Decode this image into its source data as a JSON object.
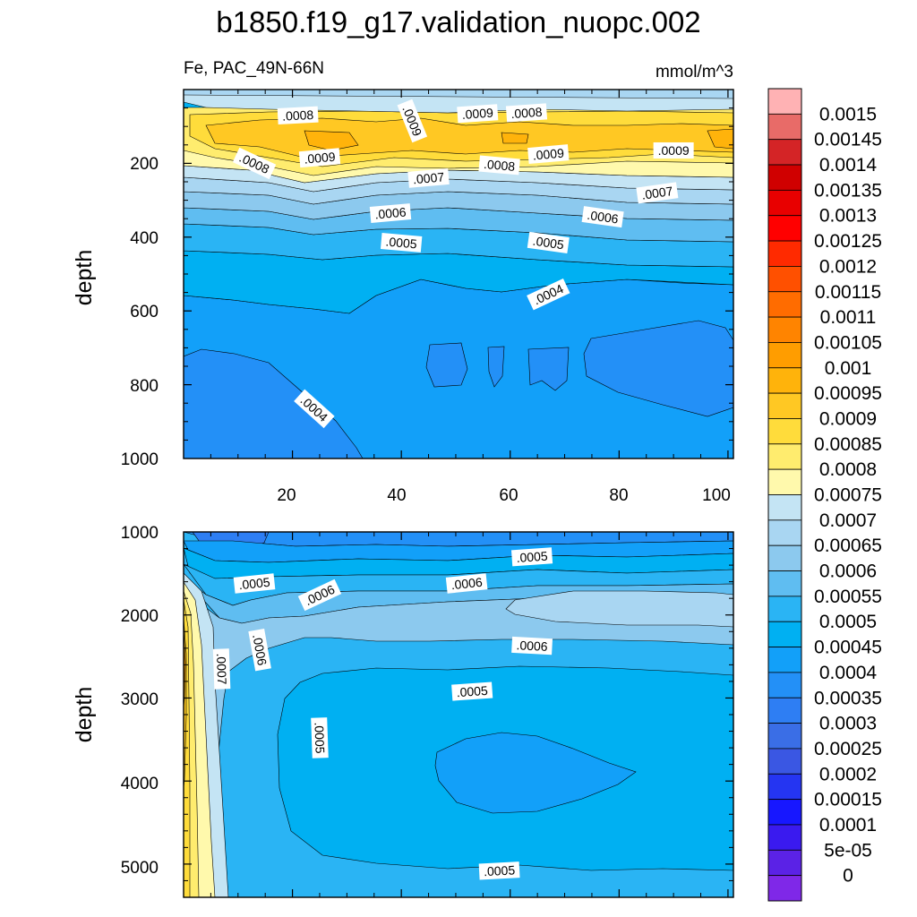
{
  "figure": {
    "title": "b1850.f19_g17.validation_nuopc.002",
    "variable_label": "Fe, PAC_49N-66N",
    "units": "mmol/m^3"
  },
  "chart_data": [
    {
      "type": "heatmap",
      "panel": "upper",
      "ylabel": "depth",
      "xlabel": "",
      "xlim": [
        0,
        101
      ],
      "ylim": [
        1000,
        0
      ],
      "x_ticks": [
        "20",
        "40",
        "60",
        "80",
        "100"
      ],
      "y_ticks": [
        "200",
        "400",
        "600",
        "800",
        "1000"
      ],
      "contour_labels": [
        {
          "text": ".0008",
          "x": 21,
          "y": 70
        },
        {
          "text": ".0009",
          "x": 42,
          "y": 85
        },
        {
          "text": ".0009",
          "x": 54,
          "y": 65
        },
        {
          "text": ".0008",
          "x": 63,
          "y": 63
        },
        {
          "text": ".0008",
          "x": 13,
          "y": 200
        },
        {
          "text": ".0009",
          "x": 25,
          "y": 185
        },
        {
          "text": ".0009",
          "x": 67,
          "y": 175
        },
        {
          "text": ".0008",
          "x": 58,
          "y": 205
        },
        {
          "text": ".0009",
          "x": 90,
          "y": 165
        },
        {
          "text": ".0007",
          "x": 45,
          "y": 240
        },
        {
          "text": ".0007",
          "x": 87,
          "y": 280
        },
        {
          "text": ".0006",
          "x": 38,
          "y": 335
        },
        {
          "text": ".0006",
          "x": 77,
          "y": 345
        },
        {
          "text": ".0005",
          "x": 40,
          "y": 415
        },
        {
          "text": ".0005",
          "x": 67,
          "y": 415
        },
        {
          "text": ".0004",
          "x": 67,
          "y": 555
        },
        {
          "text": ".0004",
          "x": 24,
          "y": 865
        }
      ]
    },
    {
      "type": "heatmap",
      "panel": "lower",
      "ylabel": "depth",
      "xlabel": "",
      "xlim": [
        0,
        101
      ],
      "ylim": [
        5400,
        1000
      ],
      "y_ticks": [
        "1000",
        "2000",
        "3000",
        "4000",
        "5000"
      ],
      "contour_labels": [
        {
          "text": ".0005",
          "x": 64,
          "y": 1300
        },
        {
          "text": ".0005",
          "x": 13,
          "y": 1620
        },
        {
          "text": ".0006",
          "x": 25,
          "y": 1760
        },
        {
          "text": ".0006",
          "x": 52,
          "y": 1620
        },
        {
          "text": ".0007",
          "x": 7,
          "y": 2650
        },
        {
          "text": ".0006",
          "x": 14,
          "y": 2420
        },
        {
          "text": ".0006",
          "x": 64,
          "y": 2370
        },
        {
          "text": ".0005",
          "x": 53,
          "y": 2920
        },
        {
          "text": ".0005",
          "x": 25,
          "y": 3480
        },
        {
          "text": ".0005",
          "x": 58,
          "y": 5080
        }
      ]
    }
  ],
  "colorbar": {
    "labels": [
      "0.0015",
      "0.00145",
      "0.0014",
      "0.00135",
      "0.0013",
      "0.00125",
      "0.0012",
      "0.00115",
      "0.0011",
      "0.00105",
      "0.001",
      "0.00095",
      "0.0009",
      "0.00085",
      "0.0008",
      "0.00075",
      "0.0007",
      "0.00065",
      "0.0006",
      "0.00055",
      "0.0005",
      "0.00045",
      "0.0004",
      "0.00035",
      "0.0003",
      "0.00025",
      "0.0002",
      "0.00015",
      "0.0001",
      "5e-05",
      "0"
    ],
    "colors": [
      "#ffb2b4",
      "#e86b68",
      "#d42426",
      "#d00000",
      "#e80000",
      "#ff0000",
      "#ff2a00",
      "#ff5000",
      "#ff6c00",
      "#ff8400",
      "#ff9d00",
      "#ffb30b",
      "#ffc823",
      "#ffdc3b",
      "#ffec6e",
      "#fff9ac",
      "#c4e4f4",
      "#a9d6f2",
      "#8cc9ee",
      "#5fbdf1",
      "#2ab4f4",
      "#00b0f2",
      "#12a0f9",
      "#2390f7",
      "#2e7ef3",
      "#3a6ee6",
      "#3a57e3",
      "#2535f2",
      "#1717ff",
      "#3a1aef",
      "#5b22e6",
      "#7f28e8"
    ]
  }
}
